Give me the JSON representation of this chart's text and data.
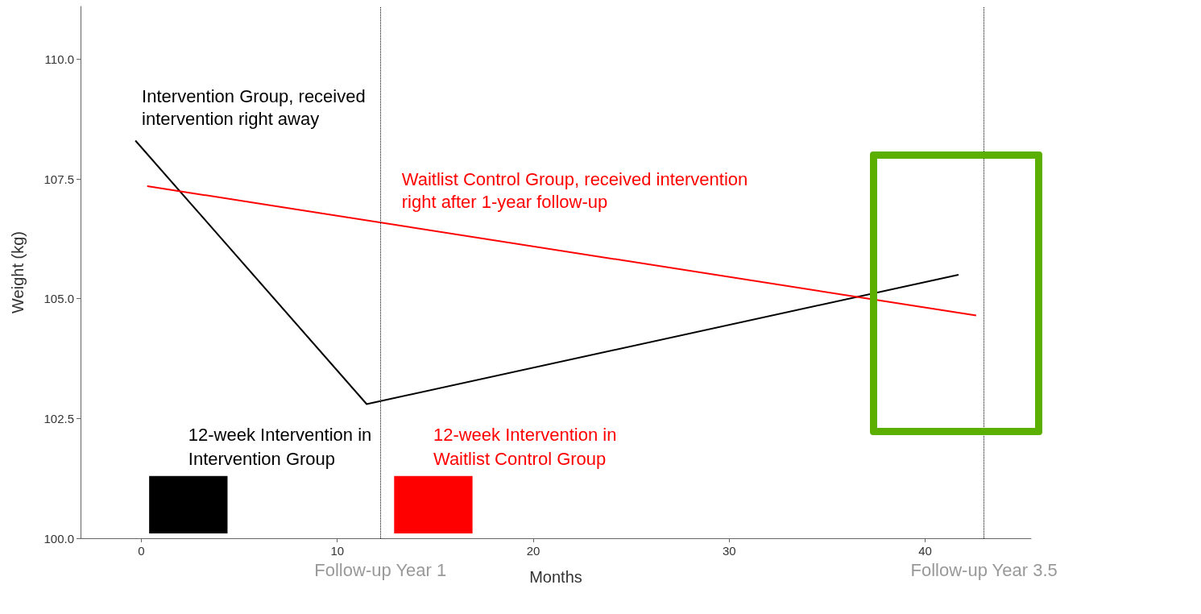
{
  "chart_data": {
    "type": "line",
    "xlabel": "Months",
    "ylabel": "Weight (kg)",
    "xlim": [
      -3.1,
      45.4
    ],
    "xticks": [
      0,
      10,
      20,
      30,
      40
    ],
    "ylim": [
      100,
      111.1
    ],
    "yticks": [
      {
        "value": 100,
        "label": "100.0"
      },
      {
        "value": 102.5,
        "label": "102.5"
      },
      {
        "value": 105,
        "label": "105.0"
      },
      {
        "value": 107.5,
        "label": "107.5"
      },
      {
        "value": 110,
        "label": "110.0"
      }
    ],
    "grid": false,
    "legend": false,
    "marker": "none",
    "line_style": "solid",
    "series": [
      {
        "name": "Intervention Group, received intervention right away",
        "color": "#000000",
        "x": [
          -0.3,
          11.5,
          41.7
        ],
        "values": [
          108.3,
          102.8,
          105.5
        ]
      },
      {
        "name": "Waitlist Control Group, received intervention right after 1-year follow-up",
        "color": "#ff0000",
        "x": [
          0.3,
          42.6
        ],
        "values": [
          107.35,
          104.65
        ]
      }
    ],
    "ref_lines": [
      {
        "axis": "x",
        "value": 12.2,
        "label": "Follow-up Year 1",
        "line_style": "dotted",
        "color": "#000000"
      },
      {
        "axis": "x",
        "value": 43,
        "label": "Follow-up Year 3.5",
        "line_style": "dotted",
        "color": "#000000"
      }
    ],
    "bands": [
      {
        "axis": "x",
        "from": 0.4,
        "to": 4.4,
        "label": "12-week Intervention in Intervention Group",
        "color": "#000000"
      },
      {
        "axis": "x",
        "from": 12.9,
        "to": 16.9,
        "label": "12-week Intervention in Waitlist Control Group",
        "color": "#ff0000"
      }
    ]
  }
}
